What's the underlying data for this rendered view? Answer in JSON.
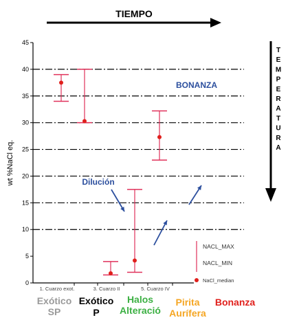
{
  "header": {
    "time_label": "TIEMPO"
  },
  "side": {
    "temperature_label": "TEMPERATURA"
  },
  "chart_data": {
    "type": "error-bar",
    "ylabel": "wt %NaCl eq.",
    "ylim": [
      0,
      45
    ],
    "y_ticks": [
      0,
      5,
      10,
      15,
      20,
      25,
      30,
      35,
      40,
      45
    ],
    "grid": false,
    "categories": [
      "1. Cuarzo exot.",
      "",
      "3. Cuarzo II",
      "",
      "5. Cuarzo IV"
    ],
    "series": [
      {
        "name": "NACL_MAX",
        "values": [
          39,
          40,
          4,
          17.5,
          32.2
        ]
      },
      {
        "name": "NACL_MIN",
        "values": [
          34,
          30,
          1.5,
          2,
          23
        ]
      },
      {
        "name": "NaCl_median",
        "values": [
          37.5,
          30.3,
          1.8,
          4.2,
          27.3
        ]
      }
    ],
    "reference_lines": [
      10,
      15,
      20,
      25,
      30,
      35,
      40
    ],
    "legend": {
      "placement": "bottom-right",
      "median_color": "#e0201c"
    },
    "annotations": [
      "BONANZA",
      "Dilución"
    ],
    "colors": {
      "bars": "#e0305a",
      "median": "#e0201c",
      "blue": "#2c4f9e",
      "axis": "#000000"
    }
  },
  "stages": [
    {
      "lines": [
        "Exótico",
        "SP"
      ],
      "color": "#9a9a9a"
    },
    {
      "lines": [
        "Exótico",
        "P"
      ],
      "color": "#000000"
    },
    {
      "lines": [
        "Halos",
        "Alteració"
      ],
      "color": "#3cb043"
    },
    {
      "lines": [
        "Pirita",
        "Aurífera"
      ],
      "color": "#f5a623"
    },
    {
      "lines": [
        "Bonanza"
      ],
      "color": "#e0201c"
    }
  ]
}
